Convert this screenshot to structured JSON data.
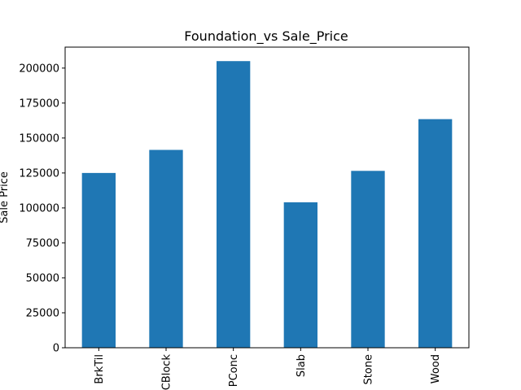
{
  "chart_data": {
    "type": "bar",
    "title": "Foundation_vs Sale_Price",
    "xlabel": "",
    "ylabel": "Sale Price",
    "categories": [
      "BrkTil",
      "CBlock",
      "PConc",
      "Slab",
      "Stone",
      "Wood"
    ],
    "values": [
      125000,
      141500,
      205000,
      104000,
      126500,
      163500
    ],
    "ylim": [
      0,
      215000
    ],
    "yticks": [
      0,
      25000,
      50000,
      75000,
      100000,
      125000,
      150000,
      175000,
      200000
    ],
    "ytick_labels": [
      "0",
      "25000",
      "50000",
      "75000",
      "100000",
      "125000",
      "150000",
      "175000",
      "200000"
    ],
    "grid": false,
    "legend": "none",
    "bar_color": "#1f77b4"
  }
}
